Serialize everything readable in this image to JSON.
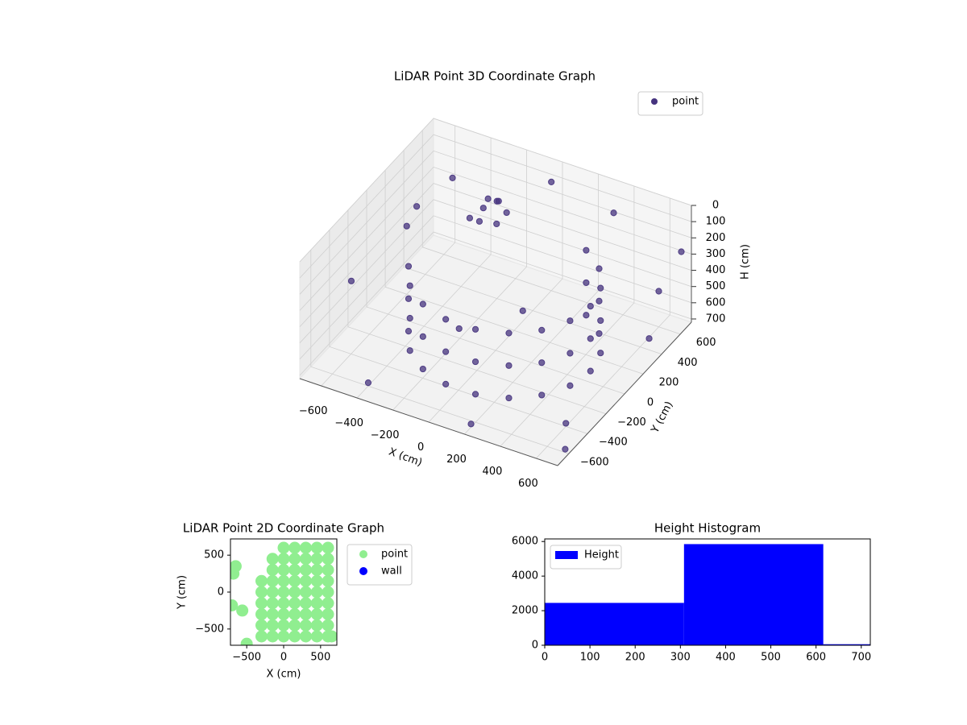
{
  "chart_data": [
    {
      "type": "scatter3d",
      "title": "LiDAR Point 3D Coordinate Graph",
      "xlabel": "X (cm)",
      "ylabel": "Y (cm)",
      "zlabel": "H (cm)",
      "xlim": [
        -720,
        720
      ],
      "ylim": [
        -720,
        720
      ],
      "zlim": [
        720,
        0
      ],
      "xticks": [
        {
          "value": -600,
          "label": "−600"
        },
        {
          "value": -400,
          "label": "−400"
        },
        {
          "value": -200,
          "label": "−200"
        },
        0,
        200,
        400,
        600
      ],
      "yticks": [
        {
          "value": -600,
          "label": "−600"
        },
        {
          "value": -400,
          "label": "−400"
        },
        {
          "value": -200,
          "label": "−200"
        },
        0,
        200,
        400,
        600
      ],
      "zticks": [
        0,
        100,
        200,
        300,
        400,
        500,
        600,
        700
      ],
      "legend": "upper right",
      "grid": true,
      "series": [
        {
          "name": "point",
          "color": "#46337e",
          "x": [
            -401,
            -401,
            -401,
            -318,
            -318,
            -318,
            -190,
            -190,
            -190,
            -33,
            -33,
            -33,
            133,
            133,
            133,
            290,
            290,
            290,
            418,
            418,
            418,
            501,
            501,
            501,
            530,
            530,
            530,
            501,
            501,
            501,
            418,
            418,
            418,
            290,
            290,
            290,
            -250,
            -200,
            -150,
            -300,
            -220,
            -180,
            -260,
            -120,
            -650,
            -600,
            -500,
            600,
            700,
            650,
            -400,
            200,
            0,
            -700,
            400,
            700,
            600,
            -100,
            100
          ],
          "y": [
            -164,
            -164,
            -164,
            -309,
            -309,
            -309,
            -416,
            -416,
            -416,
            -473,
            -473,
            -473,
            -473,
            -473,
            -473,
            -416,
            -416,
            -416,
            -309,
            -309,
            -309,
            -164,
            -164,
            -164,
            0,
            0,
            0,
            164,
            164,
            164,
            309,
            309,
            309,
            416,
            416,
            416,
            350,
            400,
            300,
            300,
            250,
            380,
            420,
            350,
            -300,
            200,
            500,
            600,
            -600,
            400,
            -600,
            -650,
            600,
            500,
            500,
            650,
            -400,
            -200,
            100
          ],
          "z": [
            250,
            450,
            650,
            250,
            450,
            650,
            250,
            450,
            650,
            250,
            450,
            650,
            250,
            450,
            650,
            250,
            450,
            650,
            250,
            450,
            650,
            250,
            450,
            650,
            250,
            450,
            650,
            250,
            450,
            650,
            250,
            450,
            650,
            250,
            450,
            650,
            150,
            120,
            180,
            200,
            160,
            100,
            140,
            130,
            350,
            300,
            150,
            500,
            700,
            650,
            700,
            700,
            50,
            400,
            30,
            250,
            700,
            500,
            500
          ]
        }
      ]
    },
    {
      "type": "scatter",
      "title": "LiDAR Point 2D Coordinate Graph",
      "xlabel": "X (cm)",
      "ylabel": "Y (cm)",
      "xlim": [
        -720,
        720
      ],
      "ylim": [
        -720,
        720
      ],
      "xticks": [
        {
          "value": -500,
          "label": "−500"
        },
        0,
        500
      ],
      "yticks": [
        {
          "value": -500,
          "label": "−500"
        },
        0,
        500
      ],
      "legend": "outside upper right",
      "series": [
        {
          "name": "point",
          "color": "lightgreen",
          "x": [
            -300,
            -150,
            0,
            150,
            300,
            450,
            600,
            -300,
            -150,
            0,
            150,
            300,
            450,
            600,
            -300,
            -150,
            0,
            150,
            300,
            450,
            600,
            -300,
            -150,
            0,
            150,
            300,
            450,
            600,
            -300,
            -150,
            0,
            150,
            300,
            450,
            600,
            -300,
            -150,
            0,
            150,
            300,
            450,
            600,
            -150,
            0,
            150,
            300,
            450,
            600,
            -150,
            0,
            150,
            300,
            450,
            600,
            0,
            150,
            300,
            450,
            600,
            -650,
            -680,
            -700,
            -560,
            -500,
            650
          ],
          "y": [
            -600,
            -600,
            -600,
            -600,
            -600,
            -600,
            -600,
            -450,
            -450,
            -450,
            -450,
            -450,
            -450,
            -450,
            -300,
            -300,
            -300,
            -300,
            -300,
            -300,
            -300,
            -150,
            -150,
            -150,
            -150,
            -150,
            -150,
            -150,
            0,
            0,
            0,
            0,
            0,
            0,
            0,
            150,
            150,
            150,
            150,
            150,
            150,
            150,
            300,
            300,
            300,
            300,
            300,
            300,
            450,
            450,
            450,
            450,
            450,
            450,
            600,
            600,
            600,
            600,
            600,
            350,
            250,
            -180,
            -250,
            -700,
            -600
          ]
        },
        {
          "name": "wall",
          "color": "blue",
          "x": [],
          "y": []
        }
      ]
    },
    {
      "type": "histogram",
      "title": "Height Histogram",
      "legend": "upper left",
      "bins": [
        0,
        308,
        616,
        924
      ],
      "xlim": [
        0,
        720
      ],
      "ylim": [
        0,
        6150
      ],
      "xticks": [
        0,
        100,
        200,
        300,
        400,
        500,
        600,
        700
      ],
      "yticks": [
        0,
        2000,
        4000,
        6000
      ],
      "series": [
        {
          "name": "Height",
          "color": "blue",
          "values": [
            2450,
            5850,
            60
          ]
        }
      ]
    }
  ]
}
